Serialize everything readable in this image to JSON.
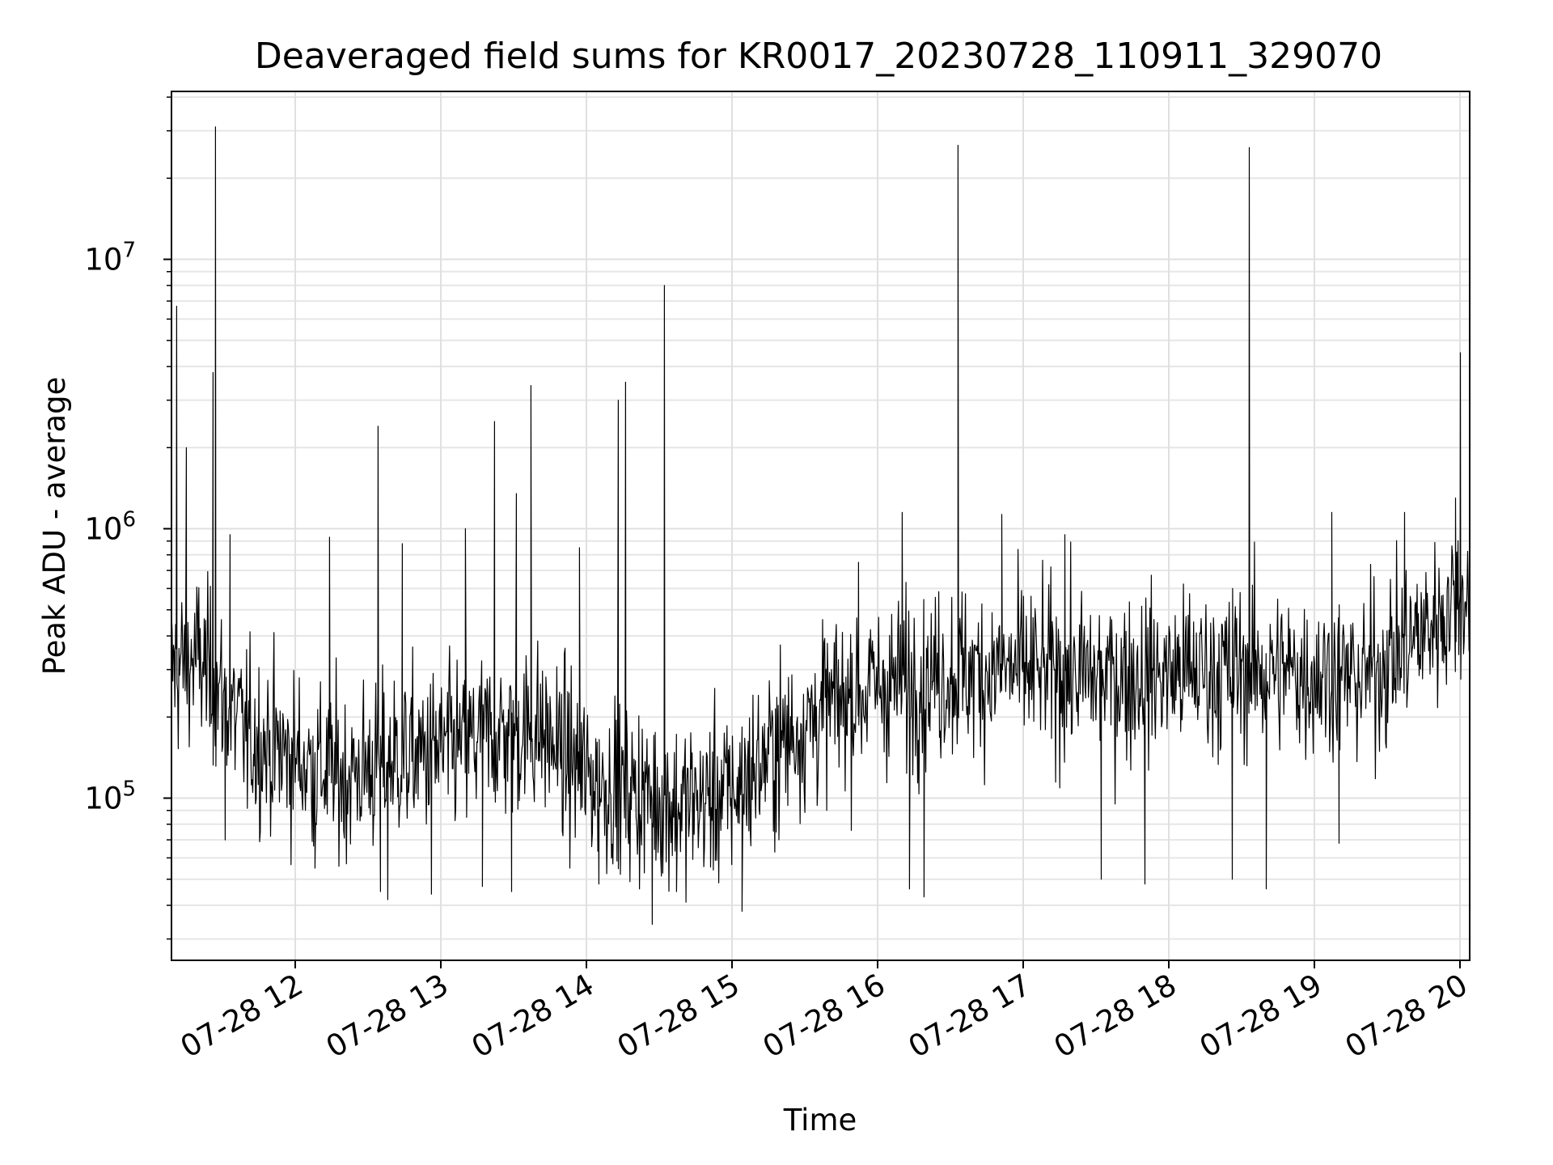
{
  "chart_data": {
    "type": "line",
    "title": "Deaveraged field sums for KR0017_20230728_110911_329070",
    "xlabel": "Time",
    "ylabel": "Peak ADU - average",
    "yscale": "log",
    "ylim": [
      25000,
      42000000
    ],
    "xlim": [
      "2023-07-28 11:09",
      "2023-07-28 20:04"
    ],
    "grid": true,
    "line_color": "#000000",
    "x_tick_labels": [
      "07-28 12",
      "07-28 13",
      "07-28 14",
      "07-28 15",
      "07-28 16",
      "07-28 17",
      "07-28 18",
      "07-28 19",
      "07-28 20"
    ],
    "x_ticks": [
      "2023-07-28 12:00",
      "2023-07-28 13:00",
      "2023-07-28 14:00",
      "2023-07-28 15:00",
      "2023-07-28 16:00",
      "2023-07-28 17:00",
      "2023-07-28 18:00",
      "2023-07-28 19:00",
      "2023-07-28 20:00"
    ],
    "y_ticks": [
      {
        "value": 100000,
        "base": "10",
        "exp": "5"
      },
      {
        "value": 1000000,
        "base": "10",
        "exp": "6"
      },
      {
        "value": 10000000,
        "base": "10",
        "exp": "7"
      }
    ],
    "series": [
      {
        "name": "",
        "baseline": [
          [
            "2023-07-28 11:09",
            300000
          ],
          [
            "2023-07-28 11:20",
            330000
          ],
          [
            "2023-07-28 11:40",
            170000
          ],
          [
            "2023-07-28 12:00",
            140000
          ],
          [
            "2023-07-28 12:20",
            120000
          ],
          [
            "2023-07-28 12:40",
            140000
          ],
          [
            "2023-07-28 13:00",
            150000
          ],
          [
            "2023-07-28 13:20",
            170000
          ],
          [
            "2023-07-28 13:40",
            180000
          ],
          [
            "2023-07-28 14:00",
            120000
          ],
          [
            "2023-07-28 14:20",
            105000
          ],
          [
            "2023-07-28 14:40",
            95000
          ],
          [
            "2023-07-28 15:00",
            105000
          ],
          [
            "2023-07-28 15:20",
            160000
          ],
          [
            "2023-07-28 15:40",
            220000
          ],
          [
            "2023-07-28 16:00",
            260000
          ],
          [
            "2023-07-28 16:30",
            290000
          ],
          [
            "2023-07-28 17:00",
            300000
          ],
          [
            "2023-07-28 17:30",
            280000
          ],
          [
            "2023-07-28 18:00",
            290000
          ],
          [
            "2023-07-28 18:30",
            300000
          ],
          [
            "2023-07-28 19:00",
            290000
          ],
          [
            "2023-07-28 19:20",
            280000
          ],
          [
            "2023-07-28 19:40",
            380000
          ],
          [
            "2023-07-28 20:04",
            600000
          ]
        ],
        "spikes": [
          [
            "2023-07-28 11:11",
            6700000
          ],
          [
            "2023-07-28 11:15",
            2000000
          ],
          [
            "2023-07-28 11:26",
            3800000
          ],
          [
            "2023-07-28 11:27",
            31000000
          ],
          [
            "2023-07-28 11:33",
            950000
          ],
          [
            "2023-07-28 12:14",
            930000
          ],
          [
            "2023-07-28 12:34",
            2400000
          ],
          [
            "2023-07-28 12:44",
            880000
          ],
          [
            "2023-07-28 13:10",
            1000000
          ],
          [
            "2023-07-28 13:22",
            2500000
          ],
          [
            "2023-07-28 13:31",
            1350000
          ],
          [
            "2023-07-28 13:37",
            3400000
          ],
          [
            "2023-07-28 13:57",
            850000
          ],
          [
            "2023-07-28 14:13",
            3000000
          ],
          [
            "2023-07-28 14:16",
            3500000
          ],
          [
            "2023-07-28 14:32",
            8000000
          ],
          [
            "2023-07-28 15:52",
            750000
          ],
          [
            "2023-07-28 16:10",
            1150000
          ],
          [
            "2023-07-28 16:33",
            26500000
          ],
          [
            "2023-07-28 16:51",
            1130000
          ],
          [
            "2023-07-28 17:17",
            950000
          ],
          [
            "2023-07-28 18:33",
            26000000
          ],
          [
            "2023-07-28 19:07",
            1150000
          ],
          [
            "2023-07-28 19:37",
            1150000
          ],
          [
            "2023-07-28 19:58",
            1300000
          ],
          [
            "2023-07-28 20:00",
            4500000
          ]
        ],
        "dips": [
          [
            "2023-07-28 11:31",
            70000
          ],
          [
            "2023-07-28 12:08",
            55000
          ],
          [
            "2023-07-28 12:35",
            45000
          ],
          [
            "2023-07-28 12:38",
            42000
          ],
          [
            "2023-07-28 12:56",
            44000
          ],
          [
            "2023-07-28 13:17",
            47000
          ],
          [
            "2023-07-28 13:29",
            45000
          ],
          [
            "2023-07-28 14:05",
            48000
          ],
          [
            "2023-07-28 14:27",
            34000
          ],
          [
            "2023-07-28 14:37",
            45000
          ],
          [
            "2023-07-28 15:04",
            38000
          ],
          [
            "2023-07-28 16:13",
            46000
          ],
          [
            "2023-07-28 16:19",
            43000
          ],
          [
            "2023-07-28 17:32",
            50000
          ],
          [
            "2023-07-28 17:50",
            48000
          ],
          [
            "2023-07-28 18:26",
            50000
          ],
          [
            "2023-07-28 18:40",
            46000
          ],
          [
            "2023-07-28 19:10",
            68000
          ]
        ]
      }
    ]
  }
}
